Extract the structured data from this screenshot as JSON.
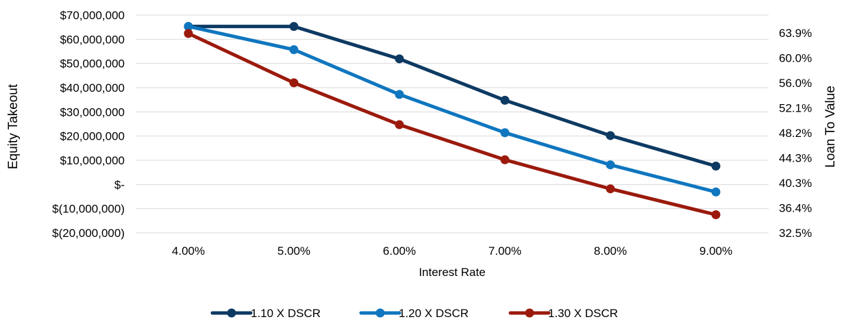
{
  "chart_data": {
    "type": "line",
    "xlabel": "Interest Rate",
    "ylabel": "Equity Takeout",
    "y2label": "Loan To Value",
    "categories": [
      "4.00%",
      "5.00%",
      "6.00%",
      "7.00%",
      "8.00%",
      "9.00%"
    ],
    "ylim": [
      -20000000,
      70000000
    ],
    "yticks": [
      -20000000,
      -10000000,
      0,
      10000000,
      20000000,
      30000000,
      40000000,
      50000000,
      60000000,
      70000000
    ],
    "ytick_labels": [
      "$(20,000,000)",
      "$(10,000,000)",
      "$-",
      "$10,000,000",
      "$20,000,000",
      "$30,000,000",
      "$40,000,000",
      "$50,000,000",
      "$60,000,000",
      "$70,000,000"
    ],
    "y2tick_labels": [
      "32.5%",
      "36.4%",
      "40.3%",
      "44.3%",
      "48.2%",
      "52.1%",
      "56.0%",
      "60.0%",
      "63.9%"
    ],
    "grid": true,
    "legend_position": "bottom",
    "series": [
      {
        "name": "1.10 X DSCR",
        "color": "#0d3a63",
        "values": [
          65300000,
          65300000,
          51900000,
          34800000,
          20200000,
          7600000
        ]
      },
      {
        "name": "1.20 X DSCR",
        "color": "#0f76bf",
        "values": [
          65300000,
          55700000,
          37200000,
          21400000,
          8100000,
          -3100000
        ]
      },
      {
        "name": "1.30 X DSCR",
        "color": "#9b1a0c",
        "values": [
          62400000,
          42000000,
          24700000,
          10200000,
          -1800000,
          -12500000
        ]
      }
    ]
  }
}
